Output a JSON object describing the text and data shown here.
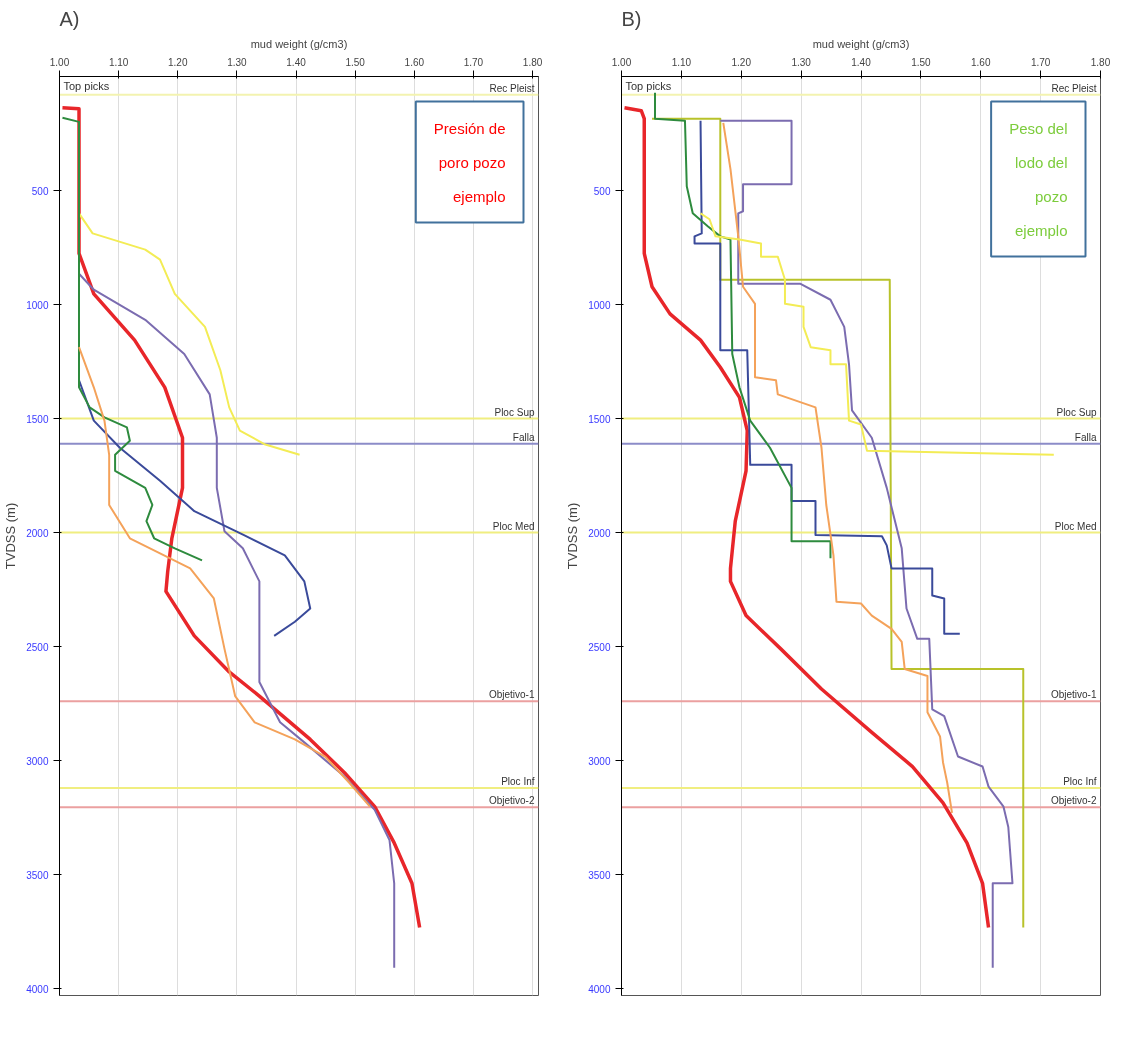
{
  "chart_data": [
    {
      "type": "line",
      "title": "A)",
      "xlabel": "mud weight (g/cm3)",
      "ylabel": "TVDSS (m)",
      "annotations": [
        "Top picks",
        "Presión de poro pozo ejemplo"
      ],
      "xlim": [
        1.0,
        1.81
      ],
      "xticks": [
        {
          "value": 1.0,
          "label": "1.00"
        },
        {
          "value": 1.1,
          "label": "1.10"
        },
        {
          "value": 1.2,
          "label": "1.20"
        },
        {
          "value": 1.3,
          "label": "1.30"
        },
        {
          "value": 1.4,
          "label": "1.40"
        },
        {
          "value": 1.5,
          "label": "1.50"
        },
        {
          "value": 1.6,
          "label": "1.60"
        },
        {
          "value": 1.7,
          "label": "1.70"
        },
        {
          "value": 1.8,
          "label": "1.80"
        }
      ],
      "ylim": [
        4030,
        0
      ],
      "yticks": [
        500,
        1000,
        1500,
        2000,
        2500,
        3000,
        3500,
        4000
      ],
      "grid": "x",
      "ref_lines": [
        {
          "axis": "y",
          "value": 80,
          "label": "Rec Pleist",
          "color": "#f3f3b0"
        },
        {
          "axis": "y",
          "value": 1500,
          "label": "Ploc Sup",
          "color": "#f0ee80"
        },
        {
          "axis": "y",
          "value": 1610,
          "label": "Falla",
          "color": "#8c8cc8"
        },
        {
          "axis": "y",
          "value": 2000,
          "label": "Ploc Med",
          "color": "#f0ee80"
        },
        {
          "axis": "y",
          "value": 2740,
          "label": "Objetivo-1",
          "color": "#eba0a0"
        },
        {
          "axis": "y",
          "value": 3120,
          "label": "Ploc Inf",
          "color": "#f0ee80"
        },
        {
          "axis": "y",
          "value": 3205,
          "label": "Objetivo-2",
          "color": "#eba0a0"
        }
      ],
      "series": [
        {
          "color": "#e8262a",
          "x": [
            1.005,
            1.033,
            1.033,
            1.058,
            1.127,
            1.178,
            1.208,
            1.208,
            1.19,
            1.183,
            1.18,
            1.228,
            1.287,
            1.338,
            1.424,
            1.482,
            1.533,
            1.566,
            1.596,
            1.609
          ],
          "values": [
            137,
            141,
            776,
            953,
            1156,
            1363,
            1584,
            1804,
            2025,
            2170,
            2258,
            2453,
            2611,
            2717,
            2907,
            3053,
            3202,
            3361,
            3538,
            3732
          ]
        },
        {
          "color": "#f3ec55",
          "x": [
            1.033,
            1.056,
            1.145,
            1.17,
            1.195,
            1.246,
            1.272,
            1.287,
            1.305,
            1.348,
            1.406
          ],
          "values": [
            600,
            688,
            759,
            803,
            953,
            1098,
            1288,
            1451,
            1553,
            1614,
            1659
          ]
        },
        {
          "color": "#7b6cb0",
          "x": [
            1.033,
            1.058,
            1.145,
            1.211,
            1.254,
            1.266,
            1.266,
            1.279,
            1.31,
            1.338,
            1.338,
            1.373,
            1.414,
            1.482,
            1.533,
            1.558,
            1.566,
            1.566
          ],
          "values": [
            865,
            935,
            1067,
            1217,
            1394,
            1584,
            1804,
            1994,
            2069,
            2214,
            2655,
            2832,
            2920,
            3070,
            3216,
            3348,
            3538,
            3908
          ]
        },
        {
          "color": "#3a4a9a",
          "x": [
            1.033,
            1.058,
            1.102,
            1.17,
            1.228,
            1.312,
            1.381,
            1.414,
            1.424,
            1.398,
            1.363
          ],
          "values": [
            1332,
            1509,
            1628,
            1773,
            1906,
            2011,
            2100,
            2214,
            2333,
            2391,
            2453
          ]
        },
        {
          "color": "#2e8b3e",
          "x": [
            1.005,
            1.033,
            1.033,
            1.051,
            1.076,
            1.114,
            1.119,
            1.094,
            1.094,
            1.145,
            1.157,
            1.147,
            1.16,
            1.195,
            1.241
          ],
          "values": [
            181,
            199,
            1363,
            1451,
            1495,
            1539,
            1597,
            1659,
            1729,
            1804,
            1879,
            1950,
            2025,
            2069,
            2122
          ]
        },
        {
          "color": "#f4a25a",
          "x": [
            1.033,
            1.058,
            1.076,
            1.084,
            1.084,
            1.119,
            1.17,
            1.221,
            1.261,
            1.279,
            1.297,
            1.33,
            1.398,
            1.449,
            1.49,
            1.525
          ],
          "values": [
            1187,
            1363,
            1509,
            1659,
            1879,
            2025,
            2091,
            2157,
            2289,
            2510,
            2717,
            2832,
            2907,
            2982,
            3097,
            3202
          ]
        }
      ]
    },
    {
      "type": "line",
      "title": "B)",
      "xlabel": "mud weight (g/cm3)",
      "ylabel": "TVDSS (m)",
      "annotations": [
        "Top picks",
        "Peso del lodo del pozo ejemplo"
      ],
      "xlim": [
        1.0,
        1.8
      ],
      "xticks": [
        {
          "value": 1.0,
          "label": "1.00"
        },
        {
          "value": 1.1,
          "label": "1.10"
        },
        {
          "value": 1.2,
          "label": "1.20"
        },
        {
          "value": 1.3,
          "label": "1.30"
        },
        {
          "value": 1.4,
          "label": "1.40"
        },
        {
          "value": 1.5,
          "label": "1.50"
        },
        {
          "value": 1.6,
          "label": "1.60"
        },
        {
          "value": 1.7,
          "label": "1.70"
        },
        {
          "value": 1.8,
          "label": "1.80"
        }
      ],
      "ylim": [
        4030,
        0
      ],
      "yticks": [
        500,
        1000,
        1500,
        2000,
        2500,
        3000,
        3500,
        4000
      ],
      "grid": "x",
      "ref_lines": [
        {
          "axis": "y",
          "value": 80,
          "label": "Rec Pleist",
          "color": "#f3f3b0"
        },
        {
          "axis": "y",
          "value": 1500,
          "label": "Ploc Sup",
          "color": "#f0ee80"
        },
        {
          "axis": "y",
          "value": 1610,
          "label": "Falla",
          "color": "#8c8cc8"
        },
        {
          "axis": "y",
          "value": 2000,
          "label": "Ploc Med",
          "color": "#f0ee80"
        },
        {
          "axis": "y",
          "value": 2740,
          "label": "Objetivo-1",
          "color": "#eba0a0"
        },
        {
          "axis": "y",
          "value": 3120,
          "label": "Ploc Inf",
          "color": "#f0ee80"
        },
        {
          "axis": "y",
          "value": 3205,
          "label": "Objetivo-2",
          "color": "#eba0a0"
        }
      ],
      "series": [
        {
          "color": "#e8262a",
          "x": [
            1.005,
            1.033,
            1.038,
            1.038,
            1.051,
            1.081,
            1.132,
            1.165,
            1.197,
            1.21,
            1.208,
            1.19,
            1.182,
            1.182,
            1.208,
            1.266,
            1.334,
            1.418,
            1.486,
            1.537,
            1.577,
            1.603,
            1.613
          ],
          "values": [
            137,
            150,
            185,
            776,
            922,
            1041,
            1156,
            1275,
            1407,
            1553,
            1729,
            1950,
            2157,
            2214,
            2364,
            2510,
            2686,
            2876,
            3026,
            3185,
            3361,
            3538,
            3732
          ]
        },
        {
          "color": "#b8c22a",
          "x": [
            1.051,
            1.165,
            1.165,
            1.448,
            1.451,
            1.671,
            1.671
          ],
          "values": [
            185,
            185,
            891,
            891,
            2598,
            2598,
            3732
          ]
        },
        {
          "color": "#7b6cb0",
          "x": [
            1.165,
            1.284,
            1.284,
            1.203,
            1.203,
            1.195,
            1.195,
            1.299,
            1.349,
            1.372,
            1.38,
            1.385,
            1.418,
            1.443,
            1.468,
            1.476,
            1.494,
            1.514,
            1.519,
            1.539,
            1.562,
            1.603,
            1.613,
            1.638,
            1.646,
            1.653,
            1.62,
            1.62
          ],
          "values": [
            194,
            194,
            472,
            472,
            591,
            600,
            909,
            909,
            979,
            1098,
            1262,
            1464,
            1584,
            1804,
            2069,
            2333,
            2466,
            2466,
            2775,
            2805,
            2982,
            3026,
            3114,
            3202,
            3291,
            3538,
            3538,
            3908
          ]
        },
        {
          "color": "#3a4a9a",
          "x": [
            1.132,
            1.134,
            1.122,
            1.122,
            1.165,
            1.165,
            1.21,
            1.215,
            1.284,
            1.284,
            1.324,
            1.324,
            1.435,
            1.443,
            1.451,
            1.519,
            1.519,
            1.539,
            1.539,
            1.565
          ],
          "values": [
            194,
            688,
            701,
            732,
            732,
            1200,
            1200,
            1703,
            1703,
            1861,
            1861,
            2011,
            2016,
            2056,
            2157,
            2157,
            2276,
            2289,
            2444,
            2444
          ]
        },
        {
          "color": "#2e8b3e",
          "x": [
            1.056,
            1.056,
            1.106,
            1.109,
            1.119,
            1.144,
            1.165,
            1.182,
            1.185,
            1.197,
            1.215,
            1.248,
            1.284,
            1.284,
            1.349,
            1.349
          ],
          "values": [
            71,
            185,
            194,
            481,
            600,
            657,
            701,
            715,
            1217,
            1363,
            1509,
            1628,
            1804,
            2038,
            2038,
            2113
          ]
        },
        {
          "color": "#f4a25a",
          "x": [
            1.17,
            1.182,
            1.195,
            1.203,
            1.223,
            1.223,
            1.258,
            1.261,
            1.324,
            1.334,
            1.342,
            1.354,
            1.359,
            1.4,
            1.418,
            1.451,
            1.468,
            1.473,
            1.511,
            1.511,
            1.532,
            1.537,
            1.544,
            1.552
          ],
          "values": [
            203,
            406,
            701,
            922,
            997,
            1319,
            1332,
            1394,
            1451,
            1628,
            1879,
            2100,
            2303,
            2311,
            2364,
            2422,
            2479,
            2598,
            2629,
            2788,
            2894,
            3008,
            3097,
            3229
          ]
        },
        {
          "color": "#f3ec55",
          "x": [
            1.132,
            1.147,
            1.157,
            1.197,
            1.233,
            1.233,
            1.261,
            1.273,
            1.273,
            1.304,
            1.304,
            1.316,
            1.349,
            1.349,
            1.375,
            1.38,
            1.4,
            1.41,
            1.722
          ],
          "values": [
            600,
            626,
            701,
            715,
            732,
            790,
            790,
            891,
            997,
            1010,
            1098,
            1187,
            1200,
            1262,
            1262,
            1509,
            1526,
            1641,
            1659
          ]
        }
      ]
    }
  ]
}
